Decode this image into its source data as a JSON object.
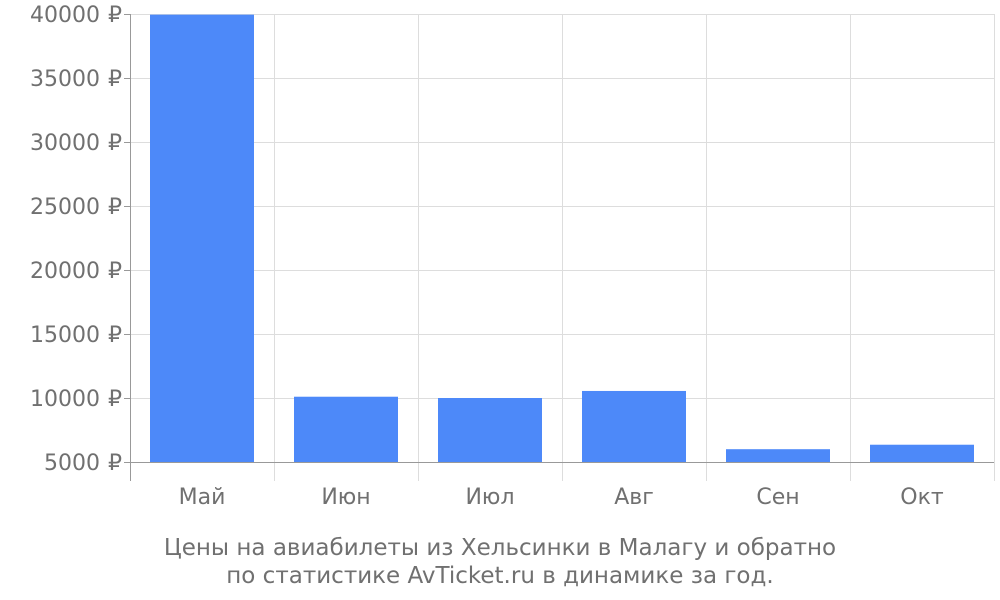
{
  "chart_data": {
    "type": "bar",
    "categories": [
      "Май",
      "Июн",
      "Июл",
      "Авг",
      "Сен",
      "Окт"
    ],
    "values": [
      39950,
      10100,
      10000,
      10550,
      6000,
      6350
    ],
    "ylim": [
      5000,
      40000
    ],
    "yticks": [
      5000,
      10000,
      15000,
      20000,
      25000,
      30000,
      35000,
      40000
    ],
    "ytick_suffix": " ₽",
    "grid": true,
    "bar_color": "#4d89f9",
    "grid_color": "#dddddd",
    "axis_color": "#999999",
    "text_color": "#707070",
    "caption_line1": "Цены на авиабилеты из Хельсинки в Малагу и обратно",
    "caption_line2": "по статистике AvTicket.ru в динамике за год."
  }
}
